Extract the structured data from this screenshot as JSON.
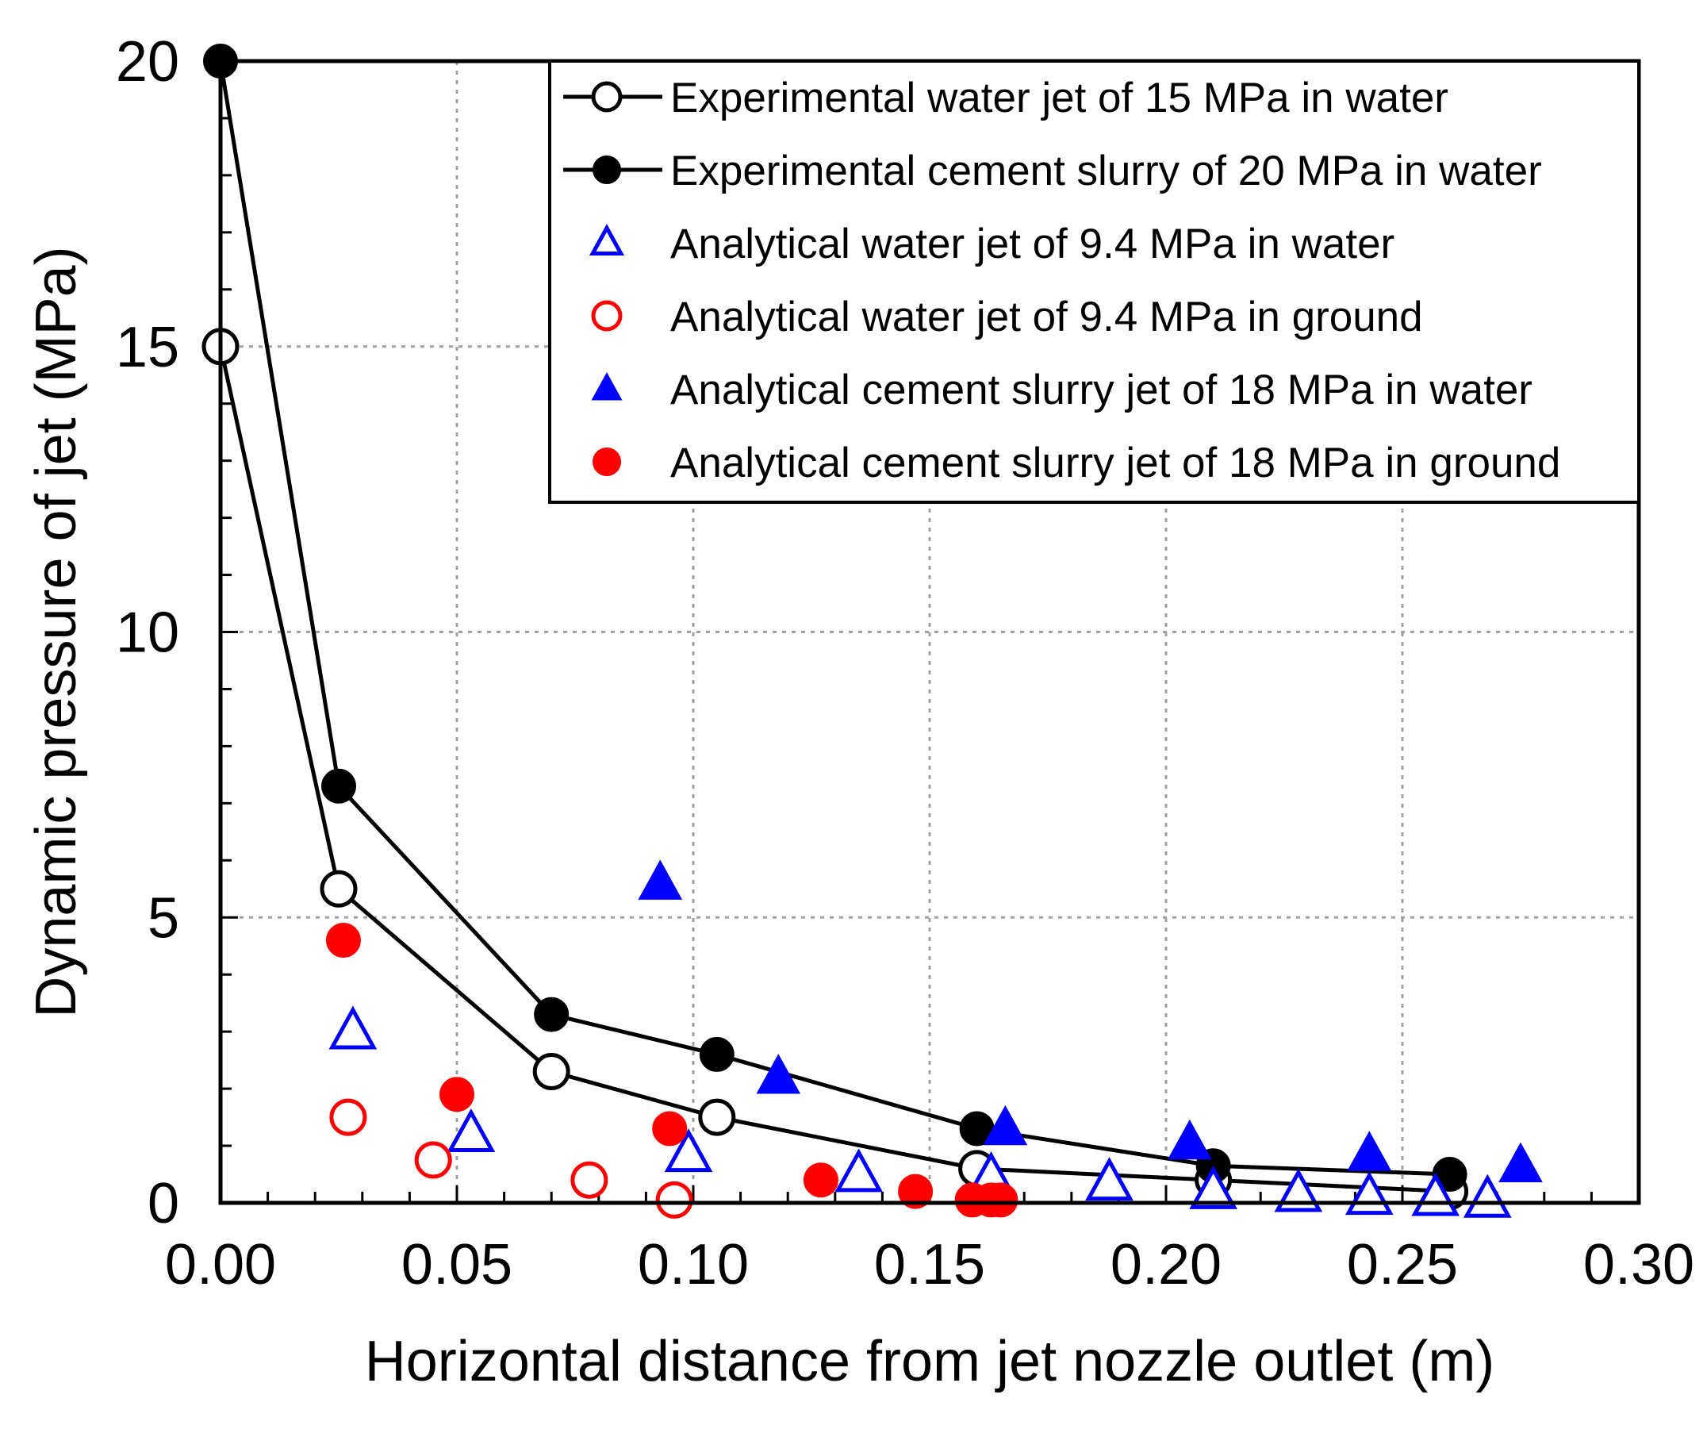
{
  "chart_data": {
    "type": "scatter",
    "xlabel": "Horizontal distance from jet nozzle outlet (m)",
    "ylabel": "Dynamic pressure of jet (MPa)",
    "xlim": [
      0,
      0.3
    ],
    "ylim": [
      0,
      20
    ],
    "x_ticks": [
      "0.00",
      "0.05",
      "0.10",
      "0.15",
      "0.20",
      "0.25",
      "0.30"
    ],
    "y_ticks": [
      "0",
      "5",
      "10",
      "15",
      "20"
    ],
    "x_tick_values": [
      0,
      0.05,
      0.1,
      0.15,
      0.2,
      0.25,
      0.3
    ],
    "y_tick_values": [
      0,
      5,
      10,
      15,
      20
    ],
    "grid": true,
    "legend_position": "top-right",
    "series": [
      {
        "name": "Experimental water jet of 15 MPa in water",
        "marker": "circle-open",
        "line": true,
        "color": "#000000",
        "points": [
          [
            0.0,
            15.0
          ],
          [
            0.025,
            5.5
          ],
          [
            0.07,
            2.3
          ],
          [
            0.105,
            1.5
          ],
          [
            0.16,
            0.6
          ],
          [
            0.21,
            0.4
          ],
          [
            0.26,
            0.2
          ]
        ]
      },
      {
        "name": "Experimental cement slurry of 20 MPa in water",
        "marker": "circle-filled",
        "line": true,
        "color": "#000000",
        "points": [
          [
            0.0,
            20.0
          ],
          [
            0.025,
            7.3
          ],
          [
            0.07,
            3.3
          ],
          [
            0.105,
            2.6
          ],
          [
            0.16,
            1.3
          ],
          [
            0.21,
            0.65
          ],
          [
            0.26,
            0.5
          ]
        ]
      },
      {
        "name": "Analytical water jet of 9.4 MPa in water",
        "marker": "triangle-open",
        "line": false,
        "color": "#0000ff",
        "points": [
          [
            0.028,
            3.0
          ],
          [
            0.053,
            1.2
          ],
          [
            0.099,
            0.85
          ],
          [
            0.135,
            0.5
          ],
          [
            0.163,
            0.45
          ],
          [
            0.188,
            0.35
          ],
          [
            0.21,
            0.2
          ],
          [
            0.228,
            0.15
          ],
          [
            0.243,
            0.1
          ],
          [
            0.257,
            0.08
          ],
          [
            0.268,
            0.05
          ]
        ]
      },
      {
        "name": "Analytical water jet of 9.4 MPa in ground",
        "marker": "circle-open",
        "line": false,
        "color": "#ff0000",
        "points": [
          [
            0.027,
            1.5
          ],
          [
            0.045,
            0.75
          ],
          [
            0.078,
            0.4
          ],
          [
            0.096,
            0.05
          ]
        ]
      },
      {
        "name": "Analytical cement slurry jet of 18 MPa in water",
        "marker": "triangle-filled",
        "line": false,
        "color": "#0000ff",
        "points": [
          [
            0.093,
            5.6
          ],
          [
            0.118,
            2.2
          ],
          [
            0.166,
            1.3
          ],
          [
            0.205,
            1.05
          ],
          [
            0.243,
            0.85
          ],
          [
            0.275,
            0.65
          ]
        ]
      },
      {
        "name": "Analytical cement slurry jet of 18 MPa in ground",
        "marker": "circle-filled",
        "line": false,
        "color": "#ff0000",
        "points": [
          [
            0.026,
            4.6
          ],
          [
            0.05,
            1.9
          ],
          [
            0.095,
            1.3
          ],
          [
            0.127,
            0.4
          ],
          [
            0.147,
            0.2
          ],
          [
            0.159,
            0.05
          ],
          [
            0.163,
            0.05
          ],
          [
            0.165,
            0.05
          ]
        ]
      }
    ]
  }
}
